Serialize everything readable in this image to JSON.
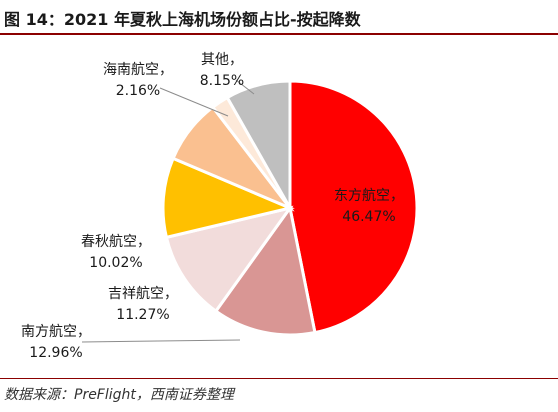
{
  "title": "图 14：2021 年夏秋上海机场份额占比-按起降数",
  "source": "数据来源：PreFlight，西南证券整理",
  "chart_data": {
    "type": "pie",
    "title": "图 14：2021 年夏秋上海机场份额占比-按起降数",
    "start_angle_deg": 0,
    "direction": "clockwise",
    "slices": [
      {
        "name": "东方航空",
        "value": 46.47,
        "value_label": "46.47%",
        "color": "#ff0000"
      },
      {
        "name": "南方航空",
        "value": 12.96,
        "value_label": "12.96%",
        "color": "#d99694"
      },
      {
        "name": "吉祥航空",
        "value": 11.27,
        "value_label": "11.27%",
        "color": "#f2dcdb"
      },
      {
        "name": "春秋航空",
        "value": 10.02,
        "value_label": "10.02%",
        "color": "#ffc000"
      },
      {
        "name": "海南航空",
        "value": 8.15,
        "value_label": "8.15%",
        "color": "#fac090"
      },
      {
        "name": "海南航空",
        "value": 2.16,
        "value_label": "2.16%",
        "color": "#fde9d9"
      },
      {
        "name": "其他",
        "value": 8.15,
        "value_label": "8.15%",
        "color": "#bfbfbf"
      }
    ],
    "labels": [
      {
        "text": "东方航空，",
        "value": "46.47%",
        "slice": 0
      },
      {
        "text": "南方航空，",
        "value": "12.96%",
        "slice": 1
      },
      {
        "text": "吉祥航空，",
        "value": "11.27%",
        "slice": 2
      },
      {
        "text": "春秋航空，",
        "value": "10.02%",
        "slice": 3
      },
      {
        "text": "海南航空，",
        "value": "2.16%",
        "slice": 5
      },
      {
        "text": "其他，",
        "value": "8.15%",
        "slice": 6
      }
    ]
  }
}
